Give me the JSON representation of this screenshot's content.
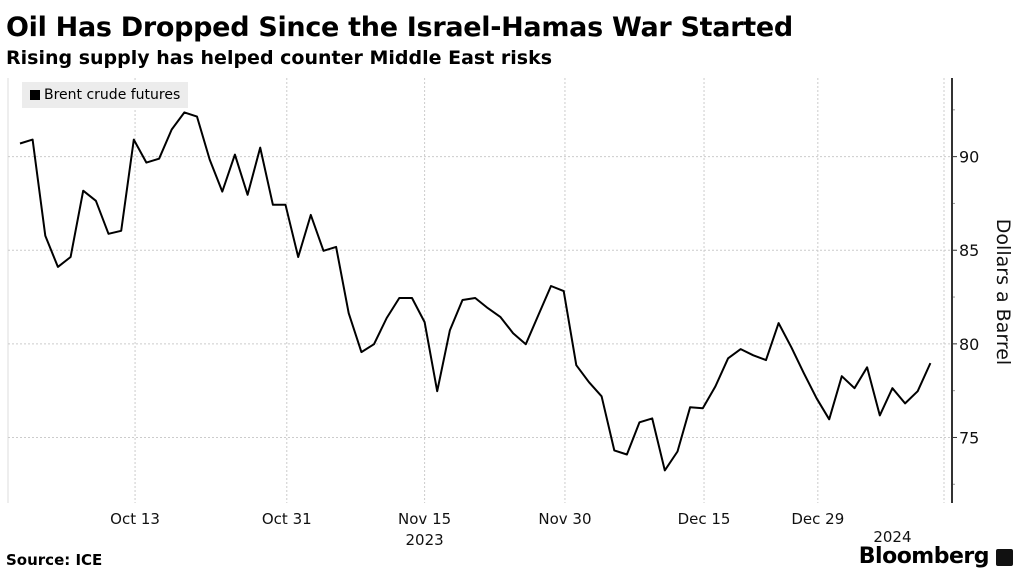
{
  "chart_data": {
    "type": "line",
    "title": "Oil Has Dropped Since the Israel-Hamas War Started",
    "subtitle": "Rising supply has helped counter Middle East risks",
    "ylabel": "Dollars a Barrel",
    "xlabel": "",
    "ylim": [
      71.5,
      94.2
    ],
    "xlim": [
      0,
      73
    ],
    "y_ticks": [
      75,
      80,
      85,
      90
    ],
    "y_minor_ticks": [
      72.5,
      77.5,
      82.5,
      87.5,
      92.5
    ],
    "x_ticks": [
      {
        "index": 9.1,
        "label": "Oct 13",
        "sublabel": ""
      },
      {
        "index": 21.1,
        "label": "Oct 31",
        "sublabel": ""
      },
      {
        "index": 32.0,
        "label": "Nov 15",
        "sublabel": "2023"
      },
      {
        "index": 43.1,
        "label": "Nov 30",
        "sublabel": ""
      },
      {
        "index": 54.1,
        "label": "Dec 15",
        "sublabel": ""
      },
      {
        "index": 63.1,
        "label": "Dec 29",
        "sublabel": ""
      },
      {
        "index": 69.0,
        "label": "",
        "sublabel": "2024"
      }
    ],
    "legend": "top-left",
    "grid": true,
    "series": [
      {
        "name": "Brent crude futures",
        "color": "#000000",
        "values": [
          90.7,
          90.91,
          85.77,
          84.11,
          84.64,
          88.18,
          87.64,
          85.88,
          86.04,
          90.91,
          89.68,
          89.89,
          91.45,
          92.36,
          92.14,
          89.84,
          88.13,
          90.11,
          87.96,
          90.48,
          87.43,
          87.43,
          84.64,
          86.89,
          84.97,
          85.18,
          81.64,
          79.56,
          79.98,
          81.38,
          82.45,
          82.45,
          81.16,
          77.47,
          80.73,
          82.34,
          82.45,
          81.91,
          81.43,
          80.57,
          79.98,
          81.54,
          83.09,
          82.82,
          78.86,
          77.95,
          77.2,
          74.31,
          74.09,
          75.81,
          76.02,
          73.24,
          74.25,
          76.61,
          76.56,
          77.73,
          79.23,
          79.72,
          79.39,
          79.13,
          81.11,
          79.82,
          78.43,
          77.09,
          75.97,
          78.27,
          77.63,
          78.75,
          76.18,
          77.63,
          76.82,
          77.47,
          78.97
        ]
      }
    ]
  },
  "footer": {
    "source": "Source: ICE",
    "brand": "Bloomberg"
  }
}
